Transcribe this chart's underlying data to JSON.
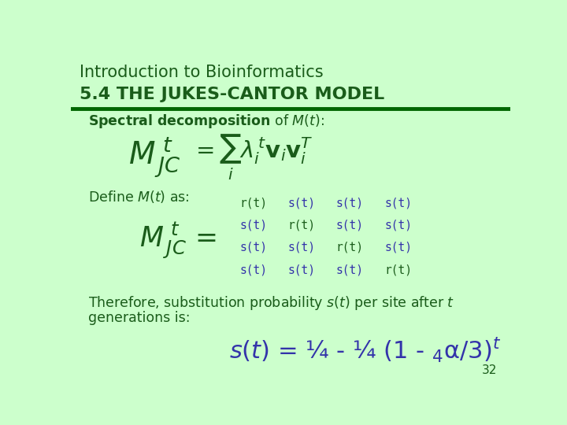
{
  "bg_color": "#ccffcc",
  "header_bg": "#ccffcc",
  "header_border_color": "#006600",
  "header_text_color": "#1a5c1a",
  "header_line1": "Introduction to Bioinformatics",
  "header_line2": "5.4 THE JUKES-CANTOR MODEL",
  "dark_green": "#1a5c1a",
  "blue_purple": "#3333aa",
  "slide_number": "32",
  "matrix_entries": [
    [
      "r(t)",
      "s(t)",
      "s(t)",
      "s(t)"
    ],
    [
      "s(t)",
      "r(t)",
      "s(t)",
      "s(t)"
    ],
    [
      "s(t)",
      "s(t)",
      "r(t)",
      "s(t)"
    ],
    [
      "s(t)",
      "s(t)",
      "s(t)",
      "r(t)"
    ]
  ]
}
